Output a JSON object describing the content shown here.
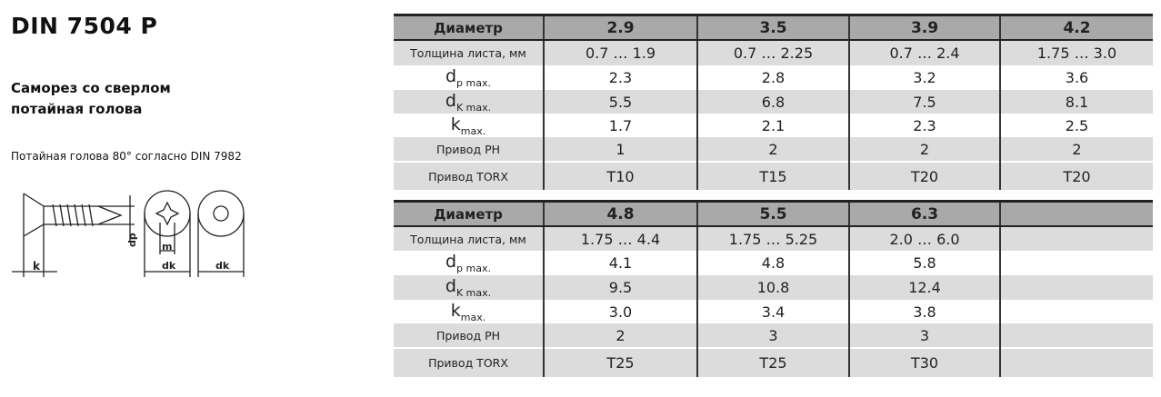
{
  "title": "DIN 7504 P",
  "subtitle_line1": "Саморез со сверлом",
  "subtitle_line2": "потайная голова",
  "note": "Потайная голова 80° согласно DIN 7982",
  "drawing_labels": {
    "k": "k",
    "dp": "dp",
    "m": "m",
    "dk1": "dk",
    "dk2": "dk"
  },
  "row_labels": {
    "diameter": "Диаметр",
    "thickness": "Толщина листа, мм",
    "dp": "d",
    "dp_sub": "p max.",
    "dk": "d",
    "dk_sub": "K max.",
    "k": "k",
    "k_sub": "max.",
    "ph": "Привод PH",
    "torx": "Привод TORX"
  },
  "tables": [
    {
      "columns": [
        {
          "diameter": "2.9",
          "thickness": "0.7  …  1.9",
          "dp": "2.3",
          "dk": "5.5",
          "k": "1.7",
          "ph": "1",
          "torx": "T10"
        },
        {
          "diameter": "3.5",
          "thickness": "0.7  …  2.25",
          "dp": "2.8",
          "dk": "6.8",
          "k": "2.1",
          "ph": "2",
          "torx": "T15"
        },
        {
          "diameter": "3.9",
          "thickness": "0.7  …  2.4",
          "dp": "3.2",
          "dk": "7.5",
          "k": "2.3",
          "ph": "2",
          "torx": "T20"
        },
        {
          "diameter": "4.2",
          "thickness": "1.75  …  3.0",
          "dp": "3.6",
          "dk": "8.1",
          "k": "2.5",
          "ph": "2",
          "torx": "T20"
        }
      ]
    },
    {
      "columns": [
        {
          "diameter": "4.8",
          "thickness": "1.75  …  4.4",
          "dp": "4.1",
          "dk": "9.5",
          "k": "3.0",
          "ph": "2",
          "torx": "T25"
        },
        {
          "diameter": "5.5",
          "thickness": "1.75  …  5.25",
          "dp": "4.8",
          "dk": "10.8",
          "k": "3.4",
          "ph": "3",
          "torx": "T25"
        },
        {
          "diameter": "6.3",
          "thickness": "2.0  …  6.0",
          "dp": "5.8",
          "dk": "12.4",
          "k": "3.8",
          "ph": "3",
          "torx": "T30"
        },
        {
          "diameter": "",
          "thickness": "",
          "dp": "",
          "dk": "",
          "k": "",
          "ph": "",
          "torx": ""
        }
      ]
    }
  ]
}
